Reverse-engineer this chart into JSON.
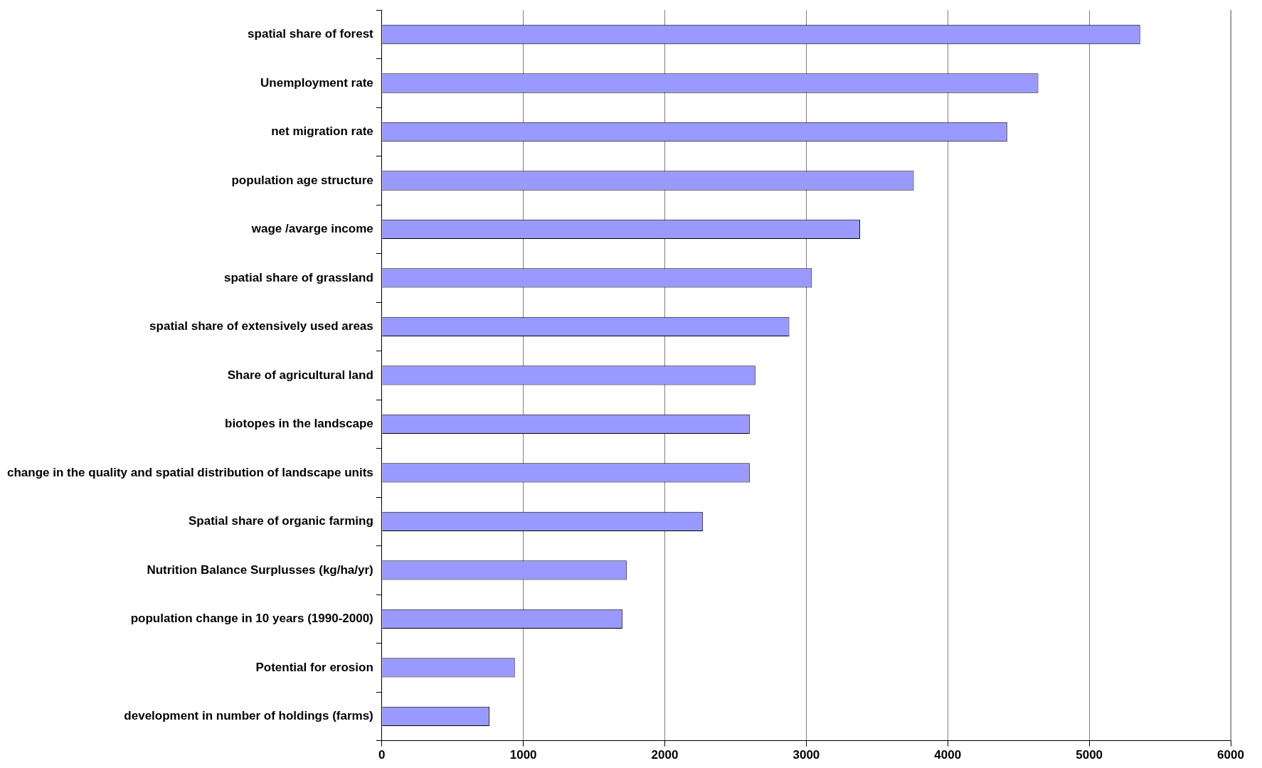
{
  "chart_data": {
    "type": "bar",
    "orientation": "horizontal",
    "categories": [
      "spatial share of forest",
      "Unemployment rate",
      "net migration rate",
      "population age structure",
      "wage /avarge income",
      "spatial share of grassland",
      "spatial share of extensively used areas",
      "Share of agricultural land",
      "biotopes in the landscape",
      "change in the quality and spatial distribution of landscape units",
      "Spatial share of organic farming",
      "Nutrition Balance Surplusses (kg/ha/yr)",
      "population change in 10 years (1990-2000)",
      "Potential for erosion",
      "development in number of holdings (farms)"
    ],
    "values": [
      5360,
      4640,
      4420,
      3760,
      3380,
      3040,
      2880,
      2640,
      2600,
      2600,
      2270,
      1730,
      1700,
      940,
      760
    ],
    "color": "#9999ff",
    "xlim": [
      0,
      6000
    ],
    "xticks": [
      0,
      1000,
      2000,
      3000,
      4000,
      5000,
      6000
    ],
    "grid": "x",
    "legend": false
  }
}
